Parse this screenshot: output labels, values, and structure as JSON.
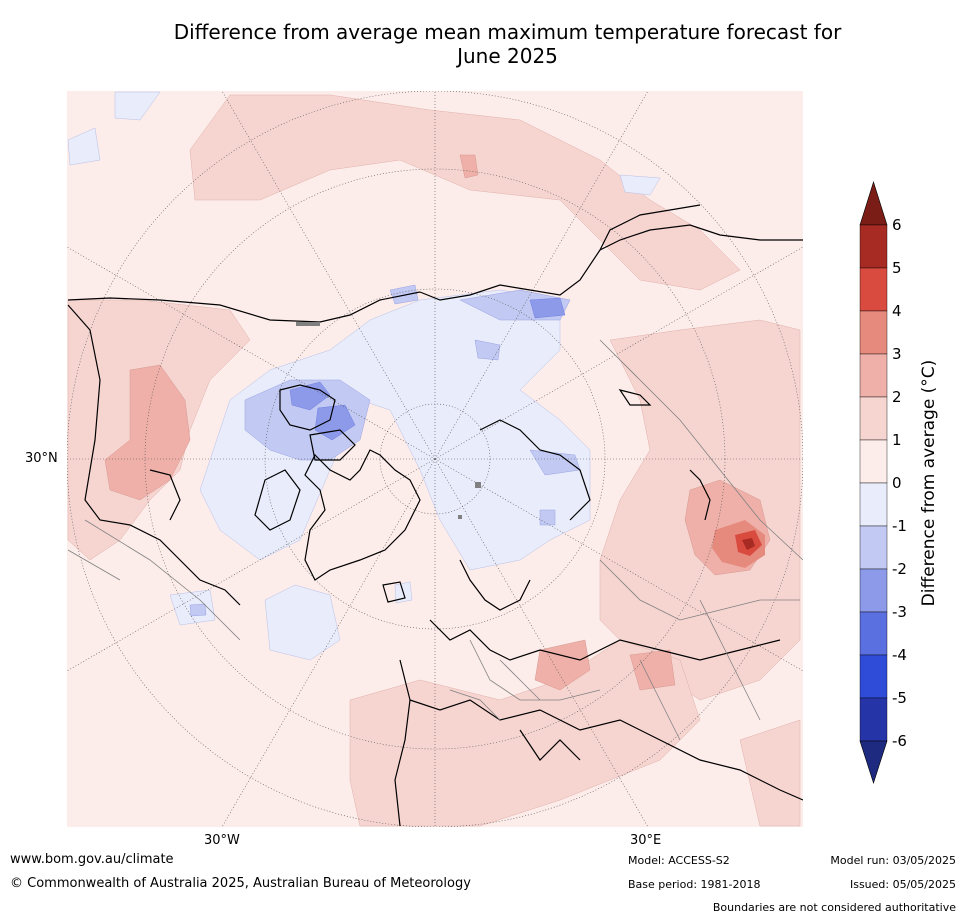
{
  "title_line1": "Difference from average mean maximum temperature forecast for",
  "title_line2": "June 2025",
  "axis_labels": {
    "lat": "30°N",
    "lon_left": "30°W",
    "lon_right": "30°E"
  },
  "colorbar": {
    "label": "Difference from average (°C)",
    "ticks": [
      "6",
      "5",
      "4",
      "3",
      "2",
      "1",
      "0",
      "-1",
      "-2",
      "-3",
      "-4",
      "-5",
      "-6"
    ],
    "colors": [
      "#7a1d17",
      "#a72a23",
      "#d94b3f",
      "#e68a7e",
      "#eeb0a8",
      "#f6d5d1",
      "#fcecea",
      "#e9ecfa",
      "#c2c9f2",
      "#8d9ae9",
      "#5a6fe0",
      "#2f4cd8",
      "#2535a8",
      "#1e2a80"
    ]
  },
  "footer": {
    "website": "www.bom.gov.au/climate",
    "copyright": "© Commonwealth of Australia 2025, Australian Bureau of Meteorology",
    "model": "Model: ACCESS-S2",
    "base_period": "Base period: 1981-2018",
    "model_run": "Model run: 03/05/2025",
    "issued": "Issued: 05/05/2025",
    "disclaimer": "Boundaries are not considered authoritative"
  }
}
